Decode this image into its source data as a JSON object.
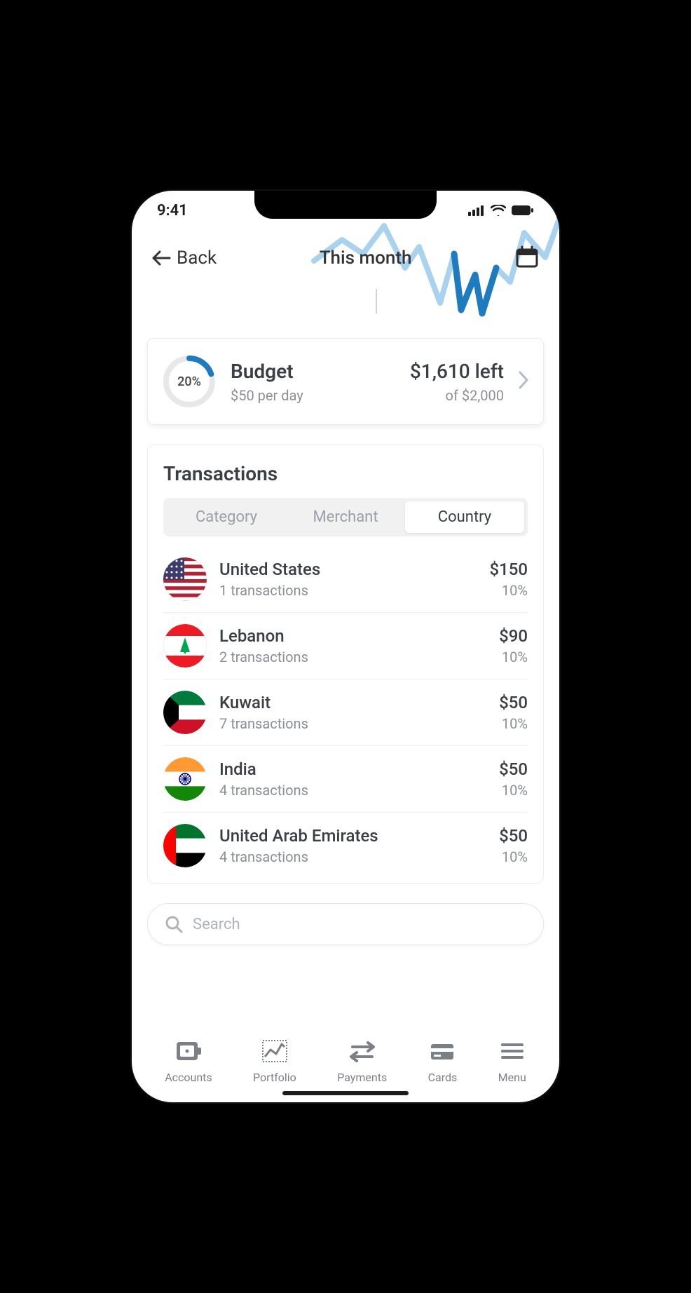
{
  "status": {
    "time": "9:41"
  },
  "header": {
    "back_label": "Back",
    "title": "This month"
  },
  "budget": {
    "percent": "20%",
    "percent_value": 20,
    "ring_color": "#1f7bbf",
    "ring_track": "#e7e8ea",
    "title": "Budget",
    "per_day": "$50 per day",
    "left_label": "$1,610 left",
    "total_label": "of $2,000"
  },
  "transactions": {
    "title": "Transactions",
    "tabs": [
      {
        "label": "Category",
        "active": false
      },
      {
        "label": "Merchant",
        "active": false
      },
      {
        "label": "Country",
        "active": true
      }
    ],
    "rows": [
      {
        "country": "United States",
        "sub": "1 transactions",
        "amount": "$150",
        "pct": "10%",
        "flag": "us"
      },
      {
        "country": "Lebanon",
        "sub": "2 transactions",
        "amount": "$90",
        "pct": "10%",
        "flag": "lb"
      },
      {
        "country": "Kuwait",
        "sub": "7 transactions",
        "amount": "$50",
        "pct": "10%",
        "flag": "kw"
      },
      {
        "country": "India",
        "sub": "4 transactions",
        "amount": "$50",
        "pct": "10%",
        "flag": "in"
      },
      {
        "country": "United Arab Emirates",
        "sub": "4 transactions",
        "amount": "$50",
        "pct": "10%",
        "flag": "ae"
      }
    ]
  },
  "search": {
    "placeholder": "Search"
  },
  "nav": {
    "items": [
      {
        "label": "Accounts",
        "icon": "wallet-icon"
      },
      {
        "label": "Portfolio",
        "icon": "chart-icon"
      },
      {
        "label": "Payments",
        "icon": "transfer-icon"
      },
      {
        "label": "Cards",
        "icon": "card-icon"
      },
      {
        "label": "Menu",
        "icon": "menu-icon"
      }
    ]
  },
  "colors": {
    "text_primary": "#3a3f46",
    "text_secondary": "#8a8f98",
    "accent": "#1f7bbf",
    "chart_line": "#a9d2ee",
    "chart_line_dark": "#1f7bbf",
    "highlight_bg": "#e8f2fa",
    "divider": "#eeeeee",
    "tab_bg": "#f1f1f2"
  }
}
